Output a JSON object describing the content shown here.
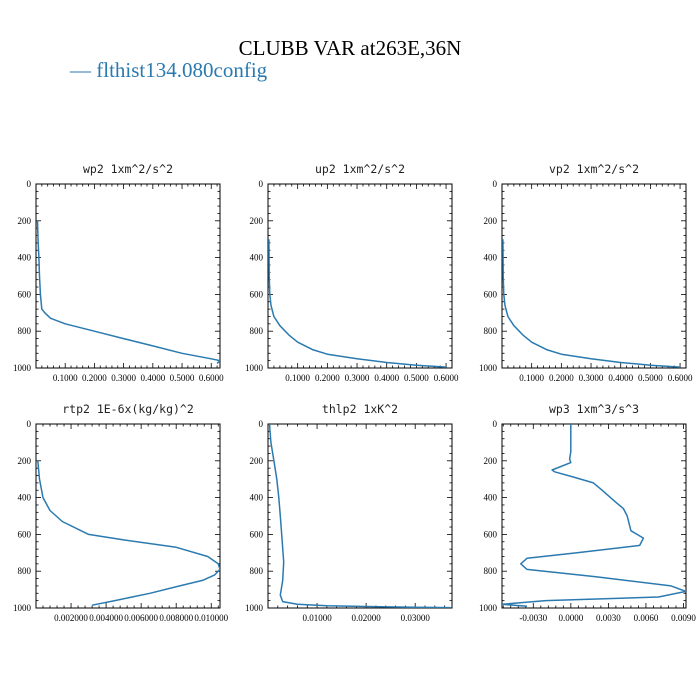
{
  "figure": {
    "title": "CLUBB VAR at263E,36N",
    "legend_label": "— flthist134.080config",
    "line_color": "#2a7ab0"
  },
  "chart_data": [
    {
      "type": "line",
      "title": "wp2   1xm^2/s^2",
      "xlim": [
        0.0,
        0.63
      ],
      "ylim": [
        1000,
        0
      ],
      "xticks": [
        0.1,
        0.2,
        0.3,
        0.4,
        0.5,
        0.6
      ],
      "xtick_labels": [
        "0.1000",
        "0.2000",
        "0.3000",
        "0.4000",
        "0.5000",
        "0.6000"
      ],
      "yticks": [
        0,
        200,
        400,
        600,
        800,
        1000
      ],
      "ytick_labels": [
        "0",
        "200",
        "400",
        "600",
        "800",
        "1000"
      ],
      "x": [
        0.005,
        0.007,
        0.01,
        0.012,
        0.015,
        0.02,
        0.03,
        0.05,
        0.1,
        0.2,
        0.3,
        0.4,
        0.5,
        0.6,
        0.63,
        0.62
      ],
      "y": [
        200,
        300,
        400,
        500,
        600,
        680,
        700,
        730,
        760,
        800,
        840,
        880,
        920,
        950,
        960,
        975
      ]
    },
    {
      "type": "line",
      "title": "up2   1xm^2/s^2",
      "xlim": [
        0.0,
        0.62
      ],
      "ylim": [
        1000,
        0
      ],
      "xticks": [
        0.1,
        0.2,
        0.3,
        0.4,
        0.5,
        0.6
      ],
      "xtick_labels": [
        "0.1000",
        "0.2000",
        "0.3000",
        "0.4000",
        "0.5000",
        "0.6000"
      ],
      "yticks": [
        0,
        200,
        400,
        600,
        800,
        1000
      ],
      "ytick_labels": [
        "0",
        "200",
        "400",
        "600",
        "800",
        "1000"
      ],
      "x": [
        0.003,
        0.004,
        0.006,
        0.01,
        0.02,
        0.04,
        0.07,
        0.1,
        0.15,
        0.2,
        0.3,
        0.4,
        0.5,
        0.6
      ],
      "y": [
        300,
        500,
        600,
        660,
        720,
        770,
        820,
        860,
        900,
        925,
        950,
        970,
        985,
        995
      ]
    },
    {
      "type": "line",
      "title": "vp2   1xm^2/s^2",
      "xlim": [
        0.0,
        0.62
      ],
      "ylim": [
        1000,
        0
      ],
      "xticks": [
        0.1,
        0.2,
        0.3,
        0.4,
        0.5,
        0.6
      ],
      "xtick_labels": [
        "0.1000",
        "0.2000",
        "0.3000",
        "0.4000",
        "0.5000",
        "0.6000"
      ],
      "yticks": [
        0,
        200,
        400,
        600,
        800,
        1000
      ],
      "ytick_labels": [
        "0",
        "200",
        "400",
        "600",
        "800",
        "1000"
      ],
      "x": [
        0.003,
        0.004,
        0.006,
        0.01,
        0.02,
        0.04,
        0.07,
        0.1,
        0.15,
        0.2,
        0.3,
        0.4,
        0.5,
        0.6
      ],
      "y": [
        300,
        500,
        600,
        660,
        720,
        770,
        820,
        860,
        900,
        925,
        950,
        970,
        985,
        995
      ]
    },
    {
      "type": "line",
      "title": "rtp2   1E-6x(kg/kg)^2",
      "xlim": [
        0.0,
        0.0105
      ],
      "ylim": [
        1000,
        0
      ],
      "xticks": [
        0.002,
        0.004,
        0.006,
        0.008,
        0.01
      ],
      "xtick_labels": [
        "0.002000",
        "0.004000",
        "0.006000",
        "0.008000",
        "0.010000"
      ],
      "yticks": [
        0,
        200,
        400,
        600,
        800,
        1000
      ],
      "ytick_labels": [
        "0",
        "200",
        "400",
        "600",
        "800",
        "1000"
      ],
      "x": [
        0.0001,
        0.0002,
        0.0004,
        0.0008,
        0.0015,
        0.003,
        0.005,
        0.008,
        0.0098,
        0.0104,
        0.0105,
        0.0102,
        0.0095,
        0.0082,
        0.0065,
        0.0045,
        0.0032
      ],
      "y": [
        200,
        300,
        400,
        470,
        530,
        600,
        630,
        670,
        720,
        760,
        790,
        820,
        850,
        880,
        920,
        960,
        985
      ]
    },
    {
      "type": "line",
      "title": "thlp2   1xK^2",
      "xlim": [
        0.0,
        0.0375
      ],
      "ylim": [
        1000,
        0
      ],
      "xticks": [
        0.01,
        0.02,
        0.03
      ],
      "xtick_labels": [
        "0.01000",
        "0.02000",
        "0.03000"
      ],
      "yticks": [
        0,
        200,
        400,
        600,
        800,
        1000
      ],
      "ytick_labels": [
        "0",
        "200",
        "400",
        "600",
        "800",
        "1000"
      ],
      "x": [
        0.0003,
        0.0006,
        0.0012,
        0.0018,
        0.0022,
        0.0025,
        0.0028,
        0.0032,
        0.003,
        0.0025,
        0.003,
        0.006,
        0.012,
        0.02,
        0.03,
        0.0372
      ],
      "y": [
        0,
        100,
        200,
        300,
        400,
        500,
        600,
        750,
        850,
        930,
        965,
        980,
        988,
        992,
        996,
        998
      ]
    },
    {
      "type": "line",
      "title": "wp3   1xm^3/s^3",
      "xlim": [
        -0.0055,
        0.0092
      ],
      "ylim": [
        1000,
        0
      ],
      "xticks": [
        -0.003,
        0.0,
        0.003,
        0.006,
        0.009
      ],
      "xtick_labels": [
        "-0.0030",
        "0.0000",
        "0.0030",
        "0.0060",
        "0.0090"
      ],
      "yticks": [
        0,
        200,
        400,
        600,
        800,
        1000
      ],
      "ytick_labels": [
        "0",
        "200",
        "400",
        "600",
        "800",
        "1000"
      ],
      "x": [
        0.0,
        0.0,
        -0.0001,
        0.0,
        -0.0015,
        -0.0013,
        0.0003,
        0.0018,
        0.0025,
        0.0035,
        0.0042,
        0.0045,
        0.0048,
        0.0058,
        0.0055,
        0.0005,
        -0.0035,
        -0.004,
        -0.0035,
        0.002,
        0.008,
        0.0092,
        0.007,
        -0.002,
        -0.0055,
        -0.0035
      ],
      "y": [
        0,
        150,
        190,
        210,
        250,
        260,
        290,
        320,
        360,
        420,
        460,
        500,
        580,
        620,
        660,
        700,
        730,
        760,
        790,
        830,
        880,
        910,
        940,
        960,
        980,
        990
      ]
    }
  ]
}
